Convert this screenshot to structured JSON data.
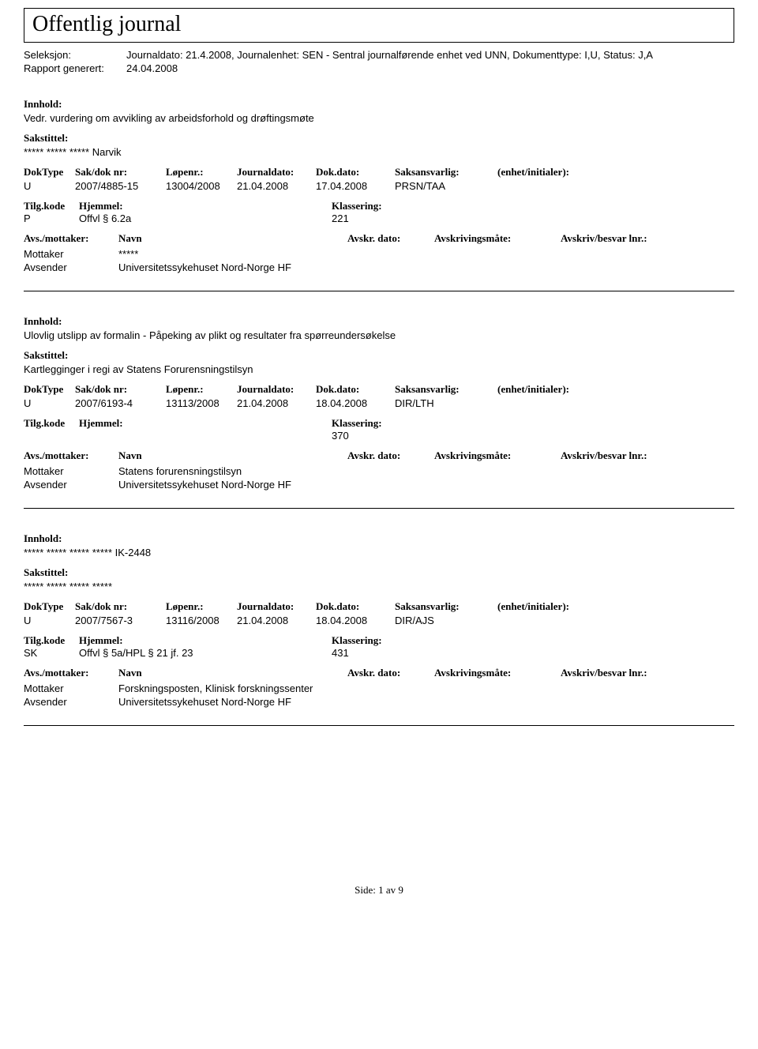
{
  "page_title": "Offentlig journal",
  "header": {
    "seleksjon_label": "Seleksjon:",
    "seleksjon_value": "Journaldato: 21.4.2008, Journalenhet: SEN - Sentral journalførende enhet ved UNN, Dokumenttype: I,U, Status: J,A",
    "rapport_label": "Rapport generert:",
    "rapport_value": "24.04.2008"
  },
  "labels": {
    "innhold": "Innhold:",
    "sakstittel": "Sakstittel:",
    "doktype": "DokType",
    "sakdok": "Sak/dok nr:",
    "lopenr": "Løpenr.:",
    "journaldato": "Journaldato:",
    "dokdato": "Dok.dato:",
    "saksansvarlig": "Saksansvarlig:",
    "enhet": "(enhet/initialer):",
    "tilgkode": "Tilg.kode",
    "hjemmel": "Hjemmel:",
    "klassering": "Klassering:",
    "avsmottaker": "Avs./mottaker:",
    "navn": "Navn",
    "avskrdato": "Avskr. dato:",
    "avskrivingsmaate": "Avskrivingsmåte:",
    "avskrivbesvar": "Avskriv/besvar lnr.:",
    "mottaker": "Mottaker",
    "avsender": "Avsender"
  },
  "entries": [
    {
      "innhold": "Vedr. vurdering om avvikling av arbeidsforhold og drøftingsmøte",
      "sakstittel": "***** ***** ***** Narvik",
      "doktype": "U",
      "sakdok": "2007/4885-15",
      "lopenr": "13004/2008",
      "journaldato": "21.04.2008",
      "dokdato": "17.04.2008",
      "saksansvarlig": "PRSN/TAA",
      "enhet": "",
      "tilgkode": "P",
      "hjemmel": "Offvl § 6.2a",
      "klassering": "221",
      "mottaker_navn": "*****",
      "avsender_navn": "Universitetssykehuset Nord-Norge HF"
    },
    {
      "innhold": "Ulovlig utslipp av formalin - Påpeking av plikt og resultater fra spørreundersøkelse",
      "sakstittel": "Kartlegginger i regi av Statens Forurensningstilsyn",
      "doktype": "U",
      "sakdok": "2007/6193-4",
      "lopenr": "13113/2008",
      "journaldato": "21.04.2008",
      "dokdato": "18.04.2008",
      "saksansvarlig": "DIR/LTH",
      "enhet": "",
      "tilgkode": "",
      "hjemmel": "",
      "klassering": "370",
      "mottaker_navn": "Statens forurensningstilsyn",
      "avsender_navn": "Universitetssykehuset Nord-Norge HF"
    },
    {
      "innhold": "***** ***** ***** ***** IK-2448",
      "sakstittel": "***** ***** ***** *****",
      "doktype": "U",
      "sakdok": "2007/7567-3",
      "lopenr": "13116/2008",
      "journaldato": "21.04.2008",
      "dokdato": "18.04.2008",
      "saksansvarlig": "DIR/AJS",
      "enhet": "",
      "tilgkode": "SK",
      "hjemmel": "Offvl § 5a/HPL § 21 jf. 23",
      "klassering": "431",
      "mottaker_navn": "Forskningsposten, Klinisk forskningssenter",
      "avsender_navn": "Universitetssykehuset Nord-Norge HF"
    }
  ],
  "footer": {
    "side_label": "Side:",
    "page_num": "1",
    "av": "av",
    "total": "9"
  }
}
